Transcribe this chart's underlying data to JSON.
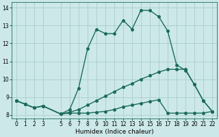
{
  "xlabel": "Humidex (Indice chaleur)",
  "bg_color": "#cce8e8",
  "grid_color": "#aacccc",
  "line_color": "#1a6b5a",
  "xlim": [
    -0.5,
    22.5
  ],
  "ylim": [
    7.8,
    14.3
  ],
  "yticks": [
    8,
    9,
    10,
    11,
    12,
    13,
    14
  ],
  "xticks": [
    0,
    1,
    2,
    3,
    5,
    6,
    7,
    8,
    9,
    10,
    11,
    12,
    13,
    14,
    15,
    16,
    17,
    18,
    19,
    20,
    21,
    22
  ],
  "line1_x": [
    0,
    1,
    2,
    3,
    5,
    6,
    7,
    8,
    9,
    10,
    11,
    12,
    13,
    14,
    15,
    16,
    17,
    18,
    19,
    20,
    21,
    22
  ],
  "line1_y": [
    8.8,
    8.6,
    8.4,
    8.5,
    8.05,
    8.3,
    9.5,
    11.7,
    12.8,
    12.55,
    12.55,
    13.3,
    12.8,
    13.85,
    13.85,
    13.5,
    12.7,
    10.8,
    10.5,
    9.7,
    8.8,
    8.2
  ],
  "line2_x": [
    0,
    1,
    2,
    3,
    5,
    6,
    7,
    8,
    9,
    10,
    11,
    12,
    13,
    14,
    15,
    16,
    17,
    18,
    19,
    20,
    21,
    22
  ],
  "line2_y": [
    8.8,
    8.6,
    8.4,
    8.5,
    8.05,
    8.15,
    8.3,
    8.55,
    8.8,
    9.05,
    9.3,
    9.55,
    9.75,
    10.0,
    10.2,
    10.4,
    10.55,
    10.55,
    10.55,
    9.7,
    8.8,
    8.2
  ],
  "line3_x": [
    0,
    1,
    2,
    3,
    5,
    6,
    7,
    8,
    9,
    10,
    11,
    12,
    13,
    14,
    15,
    16,
    17,
    18,
    19,
    20,
    21,
    22
  ],
  "line3_y": [
    8.8,
    8.6,
    8.4,
    8.5,
    8.05,
    8.1,
    8.1,
    8.1,
    8.15,
    8.2,
    8.3,
    8.45,
    8.55,
    8.65,
    8.75,
    8.85,
    8.1,
    8.1,
    8.1,
    8.1,
    8.1,
    8.2
  ],
  "xlabel_fontsize": 6.5,
  "tick_fontsize": 5.5,
  "linewidth": 1.0,
  "markersize": 2.5
}
